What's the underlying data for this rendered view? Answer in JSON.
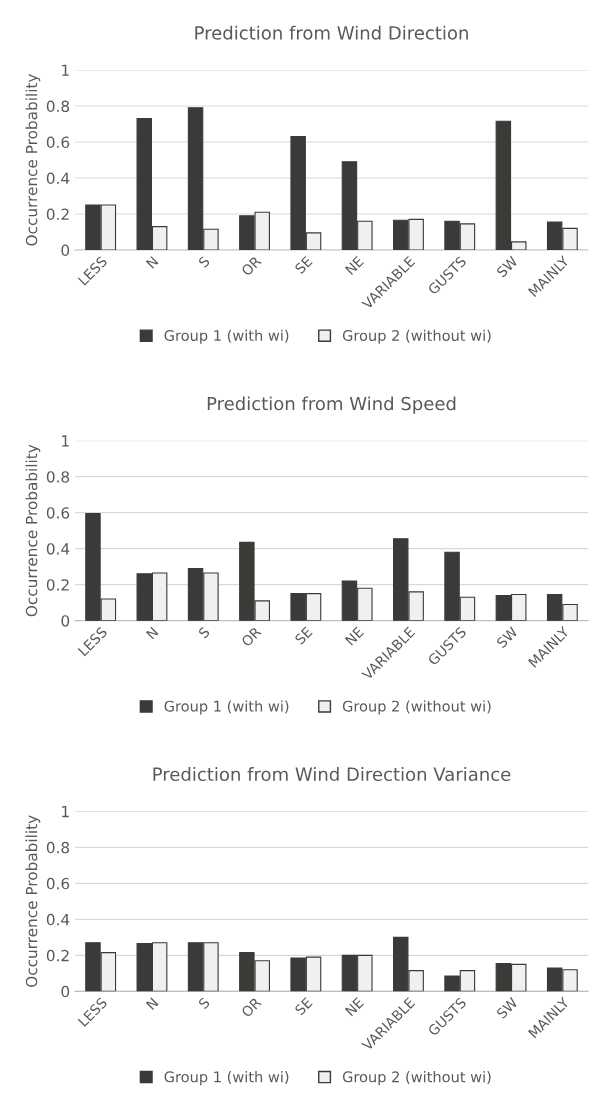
{
  "chart_data": [
    {
      "type": "bar",
      "title": "Prediction from Wind Direction",
      "ylabel": "Occurrence Probability",
      "categories": [
        "LESS",
        "N",
        "S",
        "OR",
        "SE",
        "NE",
        "VARIABLE",
        "GUSTS",
        "SW",
        "MAINLY"
      ],
      "series": [
        {
          "name": "Group 1 (with wi)",
          "color": "#3a3a38",
          "values": [
            0.25,
            0.73,
            0.79,
            0.19,
            0.63,
            0.49,
            0.165,
            0.16,
            0.715,
            0.155
          ]
        },
        {
          "name": "Group 2 (without wi)",
          "color": "#f0f0f0",
          "values": [
            0.25,
            0.13,
            0.115,
            0.21,
            0.095,
            0.16,
            0.17,
            0.145,
            0.045,
            0.12
          ]
        }
      ],
      "ylim": [
        0,
        1
      ],
      "yticks": [
        0,
        0.2,
        0.4,
        0.6,
        0.8,
        1
      ],
      "grid": "y",
      "legend": "bottom"
    },
    {
      "type": "bar",
      "title": "Prediction from Wind Speed",
      "ylabel": "Occurrence Probability",
      "categories": [
        "LESS",
        "N",
        "S",
        "OR",
        "SE",
        "NE",
        "VARIABLE",
        "GUSTS",
        "SW",
        "MAINLY"
      ],
      "series": [
        {
          "name": "Group 1 (with wi)",
          "color": "#3a3a38",
          "values": [
            0.595,
            0.26,
            0.29,
            0.435,
            0.15,
            0.22,
            0.455,
            0.38,
            0.14,
            0.145
          ]
        },
        {
          "name": "Group 2 (without wi)",
          "color": "#f0f0f0",
          "values": [
            0.12,
            0.265,
            0.265,
            0.11,
            0.15,
            0.18,
            0.16,
            0.13,
            0.145,
            0.09
          ]
        }
      ],
      "ylim": [
        0,
        1
      ],
      "yticks": [
        0,
        0.2,
        0.4,
        0.6,
        0.8,
        1
      ],
      "grid": "y",
      "legend": "bottom"
    },
    {
      "type": "bar",
      "title": "Prediction from Wind Direction Variance",
      "ylabel": "Occurrence Probability",
      "categories": [
        "LESS",
        "N",
        "S",
        "OR",
        "SE",
        "NE",
        "VARIABLE",
        "GUSTS",
        "SW",
        "MAINLY"
      ],
      "series": [
        {
          "name": "Group 1 (with wi)",
          "color": "#3a3a38",
          "values": [
            0.27,
            0.265,
            0.27,
            0.215,
            0.185,
            0.2,
            0.3,
            0.085,
            0.155,
            0.13
          ]
        },
        {
          "name": "Group 2 (without wi)",
          "color": "#f0f0f0",
          "values": [
            0.215,
            0.27,
            0.27,
            0.17,
            0.19,
            0.2,
            0.115,
            0.115,
            0.15,
            0.12
          ]
        }
      ],
      "ylim": [
        0,
        1
      ],
      "yticks": [
        0,
        0.2,
        0.4,
        0.6,
        0.8,
        1
      ],
      "grid": "y",
      "legend": "bottom"
    }
  ]
}
